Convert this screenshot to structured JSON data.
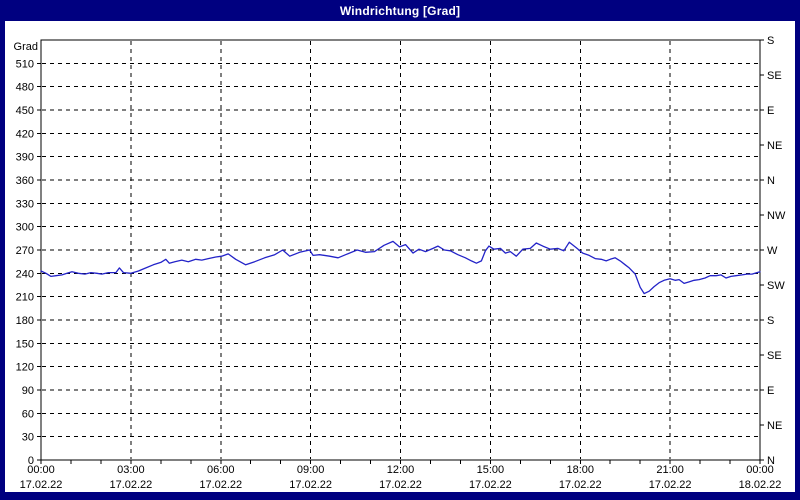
{
  "window": {
    "title": "Windrichtung [Grad]"
  },
  "colors": {
    "frame": "#000080",
    "title_text": "#ffffff",
    "panel_bg": "#ffffff",
    "plot_border": "#000000",
    "grid": "#000000",
    "text": "#000000",
    "line": "#2323c8"
  },
  "chart_data": {
    "type": "line",
    "title": "Windrichtung [Grad]",
    "ylabel": "Grad",
    "ylim": [
      0,
      540
    ],
    "y_tick_step": 30,
    "y_ticks": [
      0,
      30,
      60,
      90,
      120,
      150,
      180,
      210,
      240,
      270,
      300,
      330,
      360,
      390,
      420,
      450,
      480,
      510
    ],
    "right_axis_labels": [
      {
        "deg": 540,
        "label": "S"
      },
      {
        "deg": 495,
        "label": "SE"
      },
      {
        "deg": 450,
        "label": "E"
      },
      {
        "deg": 405,
        "label": "NE"
      },
      {
        "deg": 360,
        "label": "N"
      },
      {
        "deg": 315,
        "label": "NW"
      },
      {
        "deg": 270,
        "label": "W"
      },
      {
        "deg": 225,
        "label": "SW"
      },
      {
        "deg": 180,
        "label": "S"
      },
      {
        "deg": 135,
        "label": "SE"
      },
      {
        "deg": 90,
        "label": "E"
      },
      {
        "deg": 45,
        "label": "NE"
      },
      {
        "deg": 0,
        "label": "N"
      }
    ],
    "x_axis": {
      "range_hours": [
        0,
        24
      ],
      "minor_tick_hours": 1,
      "major_tick_hours": 3,
      "major_labels": [
        {
          "hour": 0,
          "time": "00:00",
          "date": "17.02.22"
        },
        {
          "hour": 3,
          "time": "03:00",
          "date": "17.02.22"
        },
        {
          "hour": 6,
          "time": "06:00",
          "date": "17.02.22"
        },
        {
          "hour": 9,
          "time": "09:00",
          "date": "17.02.22"
        },
        {
          "hour": 12,
          "time": "12:00",
          "date": "17.02.22"
        },
        {
          "hour": 15,
          "time": "15:00",
          "date": "17.02.22"
        },
        {
          "hour": 18,
          "time": "18:00",
          "date": "17.02.22"
        },
        {
          "hour": 21,
          "time": "21:00",
          "date": "17.02.22"
        },
        {
          "hour": 24,
          "time": "00:00",
          "date": "18.02.22"
        }
      ]
    },
    "grid": true,
    "legend": null,
    "series": [
      {
        "name": "Windrichtung",
        "points_min_deg": [
          [
            0,
            243
          ],
          [
            10,
            240
          ],
          [
            20,
            236
          ],
          [
            30,
            237
          ],
          [
            42,
            238
          ],
          [
            52,
            240
          ],
          [
            62,
            242
          ],
          [
            75,
            240
          ],
          [
            88,
            239
          ],
          [
            100,
            241
          ],
          [
            112,
            240
          ],
          [
            122,
            239
          ],
          [
            135,
            241
          ],
          [
            150,
            241
          ],
          [
            157,
            247
          ],
          [
            165,
            241
          ],
          [
            180,
            240
          ],
          [
            195,
            243
          ],
          [
            210,
            247
          ],
          [
            225,
            251
          ],
          [
            240,
            254
          ],
          [
            250,
            258
          ],
          [
            257,
            253
          ],
          [
            268,
            255
          ],
          [
            282,
            257
          ],
          [
            295,
            255
          ],
          [
            310,
            258
          ],
          [
            322,
            257
          ],
          [
            335,
            259
          ],
          [
            350,
            261
          ],
          [
            362,
            262
          ],
          [
            375,
            265
          ],
          [
            390,
            258
          ],
          [
            410,
            251
          ],
          [
            428,
            255
          ],
          [
            448,
            260
          ],
          [
            468,
            264
          ],
          [
            484,
            270
          ],
          [
            498,
            262
          ],
          [
            518,
            267
          ],
          [
            538,
            270
          ],
          [
            545,
            263
          ],
          [
            558,
            264
          ],
          [
            578,
            262
          ],
          [
            595,
            260
          ],
          [
            610,
            264
          ],
          [
            633,
            270
          ],
          [
            650,
            267
          ],
          [
            668,
            268
          ],
          [
            687,
            276
          ],
          [
            705,
            281
          ],
          [
            718,
            274
          ],
          [
            730,
            277
          ],
          [
            745,
            266
          ],
          [
            757,
            271
          ],
          [
            770,
            268
          ],
          [
            785,
            272
          ],
          [
            795,
            275
          ],
          [
            808,
            270
          ],
          [
            820,
            269
          ],
          [
            835,
            264
          ],
          [
            850,
            260
          ],
          [
            862,
            256
          ],
          [
            872,
            253
          ],
          [
            882,
            256
          ],
          [
            890,
            269
          ],
          [
            897,
            275
          ],
          [
            907,
            271
          ],
          [
            920,
            272
          ],
          [
            930,
            266
          ],
          [
            940,
            268
          ],
          [
            952,
            262
          ],
          [
            965,
            271
          ],
          [
            980,
            272
          ],
          [
            992,
            279
          ],
          [
            1005,
            275
          ],
          [
            1020,
            271
          ],
          [
            1035,
            272
          ],
          [
            1047,
            269
          ],
          [
            1058,
            280
          ],
          [
            1072,
            273
          ],
          [
            1085,
            266
          ],
          [
            1098,
            263
          ],
          [
            1110,
            259
          ],
          [
            1122,
            258
          ],
          [
            1132,
            256
          ],
          [
            1140,
            258
          ],
          [
            1150,
            260
          ],
          [
            1160,
            256
          ],
          [
            1170,
            251
          ],
          [
            1178,
            247
          ],
          [
            1190,
            239
          ],
          [
            1200,
            222
          ],
          [
            1208,
            214
          ],
          [
            1218,
            217
          ],
          [
            1228,
            223
          ],
          [
            1238,
            228
          ],
          [
            1248,
            231
          ],
          [
            1260,
            233
          ],
          [
            1270,
            231
          ],
          [
            1278,
            232
          ],
          [
            1288,
            227
          ],
          [
            1298,
            229
          ],
          [
            1308,
            231
          ],
          [
            1318,
            232
          ],
          [
            1330,
            234
          ],
          [
            1340,
            237
          ],
          [
            1352,
            237
          ],
          [
            1362,
            238
          ],
          [
            1372,
            234
          ],
          [
            1382,
            236
          ],
          [
            1392,
            237
          ],
          [
            1404,
            238
          ],
          [
            1414,
            239
          ],
          [
            1424,
            239
          ],
          [
            1434,
            241
          ],
          [
            1440,
            242
          ]
        ]
      }
    ]
  }
}
